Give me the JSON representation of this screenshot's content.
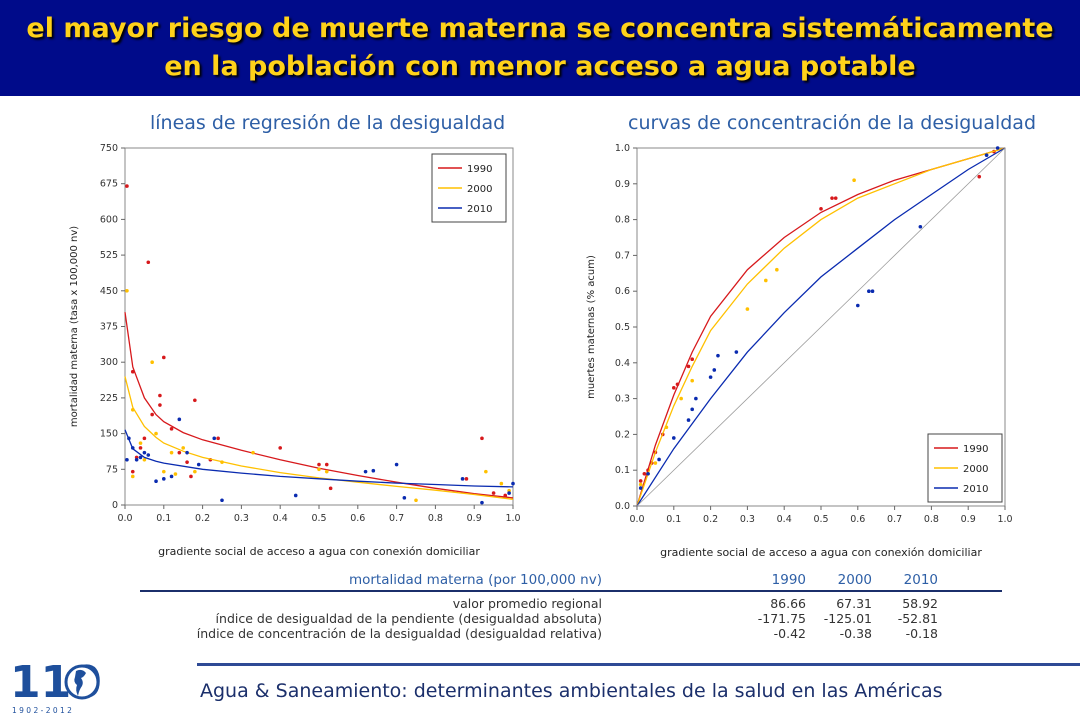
{
  "header": {
    "title": "el mayor riesgo de muerte materna se concentra sistemáticamente en la población con menor acceso a agua potable"
  },
  "left_title": "líneas de regresión de la desigualdad",
  "right_title": "curvas de concentración de la desigualdad",
  "colors": {
    "banner_bg": "#000b8a",
    "banner_text": "#ffd21a",
    "accent": "#2e5fa6",
    "s1990": "#d7191c",
    "s2000": "#ffc000",
    "s2010": "#0a2bb0"
  },
  "chart_data": [
    {
      "type": "scatter",
      "title": "líneas de regresión de la desigualdad",
      "xlabel": "gradiente social de acceso a agua con conexión domiciliar",
      "ylabel": "mortalidad materna (tasa x 100,000 nv)",
      "xlim": [
        0,
        1
      ],
      "ylim": [
        0,
        750
      ],
      "xticks": [
        "0.0",
        "0.1",
        "0.2",
        "0.3",
        "0.4",
        "0.5",
        "0.6",
        "0.7",
        "0.8",
        "0.9",
        "1.0"
      ],
      "yticks": [
        "0",
        "75",
        "150",
        "225",
        "300",
        "375",
        "450",
        "525",
        "600",
        "675",
        "750"
      ],
      "legend": "top-right",
      "series": [
        {
          "name": "1990",
          "color": "#d7191c",
          "points": [
            [
              0.005,
              670
            ],
            [
              0.06,
              510
            ],
            [
              0.02,
              280
            ],
            [
              0.1,
              310
            ],
            [
              0.09,
              230
            ],
            [
              0.07,
              190
            ],
            [
              0.09,
              210
            ],
            [
              0.14,
              110
            ],
            [
              0.18,
              220
            ],
            [
              0.12,
              160
            ],
            [
              0.05,
              140
            ],
            [
              0.03,
              100
            ],
            [
              0.16,
              90
            ],
            [
              0.17,
              60
            ],
            [
              0.22,
              95
            ],
            [
              0.24,
              140
            ],
            [
              0.4,
              120
            ],
            [
              0.5,
              85
            ],
            [
              0.52,
              85
            ],
            [
              0.53,
              35
            ],
            [
              0.92,
              140
            ],
            [
              0.88,
              55
            ],
            [
              0.95,
              25
            ],
            [
              0.98,
              20
            ],
            [
              0.02,
              70
            ],
            [
              0.04,
              120
            ]
          ],
          "fit": [
            [
              0.0,
              405
            ],
            [
              0.02,
              290
            ],
            [
              0.05,
              225
            ],
            [
              0.08,
              190
            ],
            [
              0.1,
              175
            ],
            [
              0.15,
              152
            ],
            [
              0.2,
              137
            ],
            [
              0.3,
              115
            ],
            [
              0.4,
              95
            ],
            [
              0.5,
              77
            ],
            [
              0.6,
              62
            ],
            [
              0.7,
              48
            ],
            [
              0.8,
              35
            ],
            [
              0.9,
              24
            ],
            [
              1.0,
              15
            ]
          ]
        },
        {
          "name": "2000",
          "color": "#ffc000",
          "points": [
            [
              0.005,
              450
            ],
            [
              0.07,
              300
            ],
            [
              0.02,
              200
            ],
            [
              0.08,
              150
            ],
            [
              0.04,
              130
            ],
            [
              0.12,
              110
            ],
            [
              0.1,
              70
            ],
            [
              0.15,
              120
            ],
            [
              0.05,
              95
            ],
            [
              0.02,
              60
            ],
            [
              0.25,
              90
            ],
            [
              0.33,
              110
            ],
            [
              0.5,
              75
            ],
            [
              0.52,
              70
            ],
            [
              0.75,
              10
            ],
            [
              0.93,
              70
            ],
            [
              0.97,
              45
            ],
            [
              0.99,
              30
            ],
            [
              0.13,
              65
            ],
            [
              0.18,
              70
            ]
          ],
          "fit": [
            [
              0.0,
              270
            ],
            [
              0.02,
              205
            ],
            [
              0.05,
              165
            ],
            [
              0.08,
              142
            ],
            [
              0.1,
              130
            ],
            [
              0.15,
              113
            ],
            [
              0.2,
              100
            ],
            [
              0.3,
              82
            ],
            [
              0.4,
              68
            ],
            [
              0.5,
              57
            ],
            [
              0.6,
              48
            ],
            [
              0.7,
              39
            ],
            [
              0.8,
              31
            ],
            [
              0.9,
              22
            ],
            [
              1.0,
              12
            ]
          ]
        },
        {
          "name": "2010",
          "color": "#0a2bb0",
          "points": [
            [
              0.005,
              95
            ],
            [
              0.01,
              140
            ],
            [
              0.02,
              120
            ],
            [
              0.03,
              95
            ],
            [
              0.04,
              100
            ],
            [
              0.05,
              110
            ],
            [
              0.06,
              105
            ],
            [
              0.08,
              50
            ],
            [
              0.1,
              55
            ],
            [
              0.12,
              60
            ],
            [
              0.14,
              180
            ],
            [
              0.16,
              110
            ],
            [
              0.19,
              85
            ],
            [
              0.23,
              140
            ],
            [
              0.25,
              10
            ],
            [
              0.44,
              20
            ],
            [
              0.62,
              70
            ],
            [
              0.64,
              72
            ],
            [
              0.7,
              85
            ],
            [
              0.72,
              15
            ],
            [
              0.87,
              55
            ],
            [
              0.92,
              5
            ],
            [
              0.99,
              25
            ],
            [
              1.0,
              45
            ]
          ],
          "fit": [
            [
              0.0,
              158
            ],
            [
              0.02,
              118
            ],
            [
              0.05,
              100
            ],
            [
              0.08,
              92
            ],
            [
              0.1,
              88
            ],
            [
              0.2,
              75
            ],
            [
              0.3,
              67
            ],
            [
              0.4,
              60
            ],
            [
              0.5,
              55
            ],
            [
              0.6,
              50
            ],
            [
              0.7,
              46
            ],
            [
              0.8,
              43
            ],
            [
              0.9,
              40
            ],
            [
              1.0,
              38
            ]
          ]
        }
      ]
    },
    {
      "type": "line",
      "title": "curvas de concentración de la desigualdad",
      "xlabel": "gradiente social de acceso a agua con conexión domiciliar",
      "ylabel": "muertes maternas (% acum)",
      "xlim": [
        0,
        1
      ],
      "ylim": [
        0,
        1
      ],
      "xticks": [
        "0.0",
        "0.1",
        "0.2",
        "0.3",
        "0.4",
        "0.5",
        "0.6",
        "0.7",
        "0.8",
        "0.9",
        "1.0"
      ],
      "yticks": [
        "0.0",
        "0.1",
        "0.2",
        "0.3",
        "0.4",
        "0.5",
        "0.6",
        "0.7",
        "0.8",
        "0.9",
        "1.0"
      ],
      "legend": "bottom-right",
      "series": [
        {
          "name": "1990",
          "color": "#d7191c",
          "points": [
            [
              0.01,
              0.07
            ],
            [
              0.02,
              0.09
            ],
            [
              0.03,
              0.1
            ],
            [
              0.04,
              0.12
            ],
            [
              0.05,
              0.15
            ],
            [
              0.07,
              0.2
            ],
            [
              0.1,
              0.33
            ],
            [
              0.11,
              0.34
            ],
            [
              0.14,
              0.39
            ],
            [
              0.15,
              0.41
            ],
            [
              0.5,
              0.83
            ],
            [
              0.53,
              0.86
            ],
            [
              0.54,
              0.86
            ],
            [
              0.93,
              0.92
            ],
            [
              0.97,
              0.99
            ]
          ],
          "fit": [
            [
              0,
              0
            ],
            [
              0.05,
              0.17
            ],
            [
              0.1,
              0.31
            ],
            [
              0.15,
              0.43
            ],
            [
              0.2,
              0.53
            ],
            [
              0.3,
              0.66
            ],
            [
              0.4,
              0.75
            ],
            [
              0.5,
              0.82
            ],
            [
              0.6,
              0.87
            ],
            [
              0.7,
              0.91
            ],
            [
              0.8,
              0.94
            ],
            [
              0.9,
              0.97
            ],
            [
              1.0,
              1.0
            ]
          ]
        },
        {
          "name": "2000",
          "color": "#ffc000",
          "points": [
            [
              0.01,
              0.06
            ],
            [
              0.03,
              0.09
            ],
            [
              0.05,
              0.12
            ],
            [
              0.08,
              0.22
            ],
            [
              0.12,
              0.3
            ],
            [
              0.15,
              0.35
            ],
            [
              0.3,
              0.55
            ],
            [
              0.35,
              0.63
            ],
            [
              0.38,
              0.66
            ],
            [
              0.59,
              0.91
            ],
            [
              0.95,
              0.98
            ]
          ],
          "fit": [
            [
              0,
              0
            ],
            [
              0.05,
              0.15
            ],
            [
              0.1,
              0.28
            ],
            [
              0.15,
              0.39
            ],
            [
              0.2,
              0.49
            ],
            [
              0.3,
              0.62
            ],
            [
              0.4,
              0.72
            ],
            [
              0.5,
              0.8
            ],
            [
              0.6,
              0.86
            ],
            [
              0.7,
              0.9
            ],
            [
              0.8,
              0.94
            ],
            [
              0.9,
              0.97
            ],
            [
              1.0,
              1.0
            ]
          ]
        },
        {
          "name": "2010",
          "color": "#0a2bb0",
          "points": [
            [
              0.01,
              0.05
            ],
            [
              0.03,
              0.09
            ],
            [
              0.06,
              0.13
            ],
            [
              0.1,
              0.19
            ],
            [
              0.14,
              0.24
            ],
            [
              0.15,
              0.27
            ],
            [
              0.16,
              0.3
            ],
            [
              0.2,
              0.36
            ],
            [
              0.21,
              0.38
            ],
            [
              0.22,
              0.42
            ],
            [
              0.27,
              0.43
            ],
            [
              0.6,
              0.56
            ],
            [
              0.63,
              0.6
            ],
            [
              0.64,
              0.6
            ],
            [
              0.77,
              0.78
            ],
            [
              0.95,
              0.98
            ],
            [
              0.98,
              1.0
            ]
          ],
          "fit": [
            [
              0,
              0
            ],
            [
              0.1,
              0.16
            ],
            [
              0.2,
              0.3
            ],
            [
              0.3,
              0.43
            ],
            [
              0.4,
              0.54
            ],
            [
              0.5,
              0.64
            ],
            [
              0.6,
              0.72
            ],
            [
              0.7,
              0.8
            ],
            [
              0.8,
              0.87
            ],
            [
              0.9,
              0.94
            ],
            [
              1.0,
              1.0
            ]
          ]
        },
        {
          "name": "",
          "color": "#9a9a9a",
          "fit": [
            [
              0,
              0
            ],
            [
              1,
              1
            ]
          ]
        }
      ]
    },
    {
      "type": "table",
      "header": [
        "mortalidad materna (por 100,000 nv)",
        "1990",
        "2000",
        "2010"
      ],
      "rows": [
        [
          "valor promedio regional",
          "86.66",
          "67.31",
          "58.92"
        ],
        [
          "índice de desigualdad de la pendiente (desigualdad absoluta)",
          "-171.75",
          "-125.01",
          "-52.81"
        ],
        [
          "índice de concentración de la desigualdad (desigualdad relativa)",
          "-0.42",
          "-0.38",
          "-0.18"
        ]
      ]
    }
  ],
  "footer": {
    "text": "Agua & Saneamiento: determinantes ambientales de la salud en las Américas"
  },
  "logo": {
    "number": "110",
    "years": "1 9 0 2 - 2 0 1 2"
  }
}
